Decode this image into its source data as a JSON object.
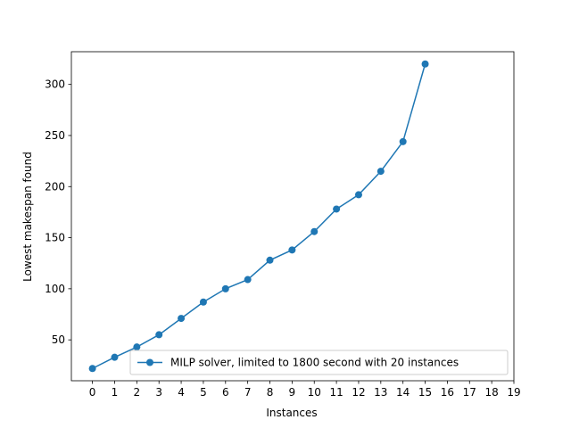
{
  "chart_data": {
    "type": "line",
    "xlabel": "Instances",
    "ylabel": "Lowest makespan found",
    "xlim": [
      -0.95,
      19
    ],
    "ylim": [
      10,
      332
    ],
    "xticks": [
      "0",
      "1",
      "2",
      "3",
      "4",
      "5",
      "6",
      "7",
      "8",
      "9",
      "10",
      "11",
      "12",
      "13",
      "14",
      "15",
      "16",
      "17",
      "18",
      "19"
    ],
    "yticks": [
      "50",
      "100",
      "150",
      "200",
      "250",
      "300"
    ],
    "grid": false,
    "legend_position": "lower right",
    "series": [
      {
        "name": "MILP solver, limited to 1800 second with 20 instances",
        "color": "#1f77b4",
        "marker": "circle",
        "x": [
          0,
          1,
          2,
          3,
          4,
          5,
          6,
          7,
          8,
          9,
          10,
          11,
          12,
          13,
          14,
          15
        ],
        "y": [
          22,
          33,
          43,
          55,
          71,
          87,
          100,
          109,
          128,
          138,
          156,
          178,
          192,
          215,
          244,
          320
        ]
      }
    ]
  }
}
